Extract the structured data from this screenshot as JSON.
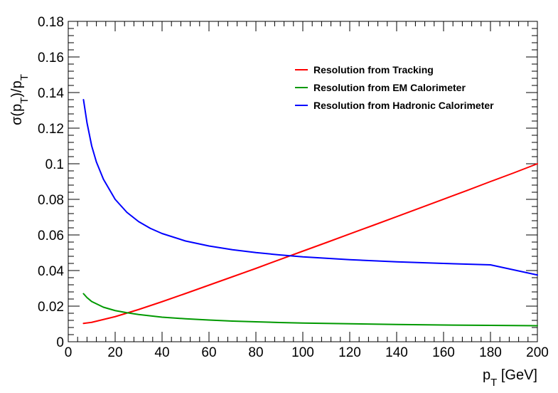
{
  "chart_data": {
    "type": "line",
    "xlabel": "p_T [GeV]",
    "ylabel": "σ(p_T)/p_T",
    "xlim": [
      0,
      200
    ],
    "ylim": [
      0,
      0.18
    ],
    "xticks": [
      "0",
      "20",
      "40",
      "60",
      "80",
      "100",
      "120",
      "140",
      "160",
      "180",
      "200"
    ],
    "yticks": [
      "0",
      "0.02",
      "0.04",
      "0.06",
      "0.08",
      "0.1",
      "0.12",
      "0.14",
      "0.16",
      "0.18"
    ],
    "legend_position": "top-right",
    "grid": false,
    "series": [
      {
        "name": "Resolution from Tracking",
        "color": "#ff0000",
        "x": [
          6.5,
          10,
          20,
          30,
          40,
          50,
          60,
          70,
          80,
          90,
          100,
          110,
          120,
          130,
          140,
          150,
          160,
          170,
          180,
          190,
          200
        ],
        "y": [
          0.0103,
          0.0109,
          0.0141,
          0.0181,
          0.0225,
          0.0271,
          0.0318,
          0.0365,
          0.0412,
          0.0461,
          0.0509,
          0.0557,
          0.0606,
          0.0654,
          0.0703,
          0.0752,
          0.0801,
          0.085,
          0.09,
          0.0949,
          0.1
        ]
      },
      {
        "name": "Resolution from EM Calorimeter",
        "color": "#009900",
        "x": [
          6.5,
          8,
          10,
          15,
          20,
          25,
          30,
          40,
          50,
          60,
          70,
          80,
          90,
          100,
          120,
          140,
          160,
          180,
          200
        ],
        "y": [
          0.027,
          0.0248,
          0.0226,
          0.0194,
          0.0175,
          0.0163,
          0.0153,
          0.0138,
          0.0129,
          0.0122,
          0.0116,
          0.0112,
          0.0108,
          0.0105,
          0.0101,
          0.0097,
          0.0094,
          0.0092,
          0.009
        ]
      },
      {
        "name": "Resolution from Hadronic Calorimeter",
        "color": "#0000ff",
        "x": [
          6.5,
          8,
          10,
          12,
          15,
          20,
          25,
          30,
          35,
          40,
          50,
          60,
          70,
          80,
          90,
          100,
          120,
          140,
          160,
          180,
          200
        ],
        "y": [
          0.136,
          0.123,
          0.11,
          0.101,
          0.0913,
          0.08,
          0.0727,
          0.0675,
          0.0637,
          0.0608,
          0.0566,
          0.0538,
          0.0517,
          0.0501,
          0.0488,
          0.0477,
          0.0461,
          0.0449,
          0.044,
          0.0432,
          0.0375
        ]
      }
    ]
  }
}
